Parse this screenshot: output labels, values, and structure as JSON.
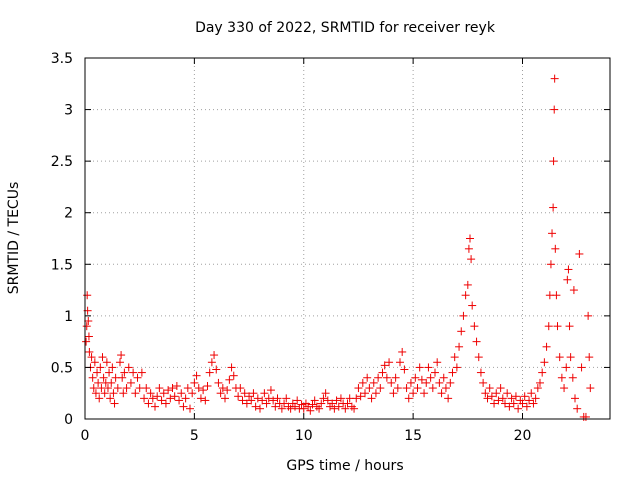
{
  "chart_data": {
    "type": "scatter",
    "title": "Day 330 of 2022, SRMTID for receiver reyk",
    "xlabel": "GPS time / hours",
    "ylabel": "SRMTID / TECUs",
    "xlim": [
      0,
      24
    ],
    "ylim": [
      0,
      3.5
    ],
    "xticks": [
      0,
      5,
      10,
      15,
      20
    ],
    "xtick_labels": [
      "0",
      "5",
      "10",
      "15",
      "20"
    ],
    "yticks": [
      0,
      0.5,
      1,
      1.5,
      2,
      2.5,
      3,
      3.5
    ],
    "ytick_labels": [
      "0",
      "0.5",
      "1",
      "1.5",
      "2",
      "2.5",
      "3",
      "3.5"
    ],
    "grid": true,
    "marker": "+",
    "series": [
      {
        "name": "reyk",
        "color": "#ee0000",
        "points": [
          [
            0.05,
            0.75
          ],
          [
            0.08,
            0.9
          ],
          [
            0.1,
            1.2
          ],
          [
            0.12,
            1.05
          ],
          [
            0.15,
            0.95
          ],
          [
            0.18,
            0.8
          ],
          [
            0.2,
            0.65
          ],
          [
            0.25,
            0.5
          ],
          [
            0.3,
            0.6
          ],
          [
            0.35,
            0.4
          ],
          [
            0.4,
            0.3
          ],
          [
            0.45,
            0.55
          ],
          [
            0.5,
            0.25
          ],
          [
            0.55,
            0.45
          ],
          [
            0.6,
            0.35
          ],
          [
            0.65,
            0.2
          ],
          [
            0.7,
            0.5
          ],
          [
            0.75,
            0.3
          ],
          [
            0.8,
            0.6
          ],
          [
            0.85,
            0.4
          ],
          [
            0.9,
            0.25
          ],
          [
            0.95,
            0.35
          ],
          [
            1.0,
            0.55
          ],
          [
            1.05,
            0.3
          ],
          [
            1.1,
            0.45
          ],
          [
            1.15,
            0.2
          ],
          [
            1.2,
            0.35
          ],
          [
            1.25,
            0.5
          ],
          [
            1.3,
            0.25
          ],
          [
            1.35,
            0.15
          ],
          [
            1.4,
            0.4
          ],
          [
            1.5,
            0.3
          ],
          [
            1.6,
            0.55
          ],
          [
            1.65,
            0.62
          ],
          [
            1.7,
            0.4
          ],
          [
            1.75,
            0.25
          ],
          [
            1.8,
            0.45
          ],
          [
            1.9,
            0.3
          ],
          [
            2.0,
            0.5
          ],
          [
            2.1,
            0.35
          ],
          [
            2.2,
            0.45
          ],
          [
            2.3,
            0.25
          ],
          [
            2.4,
            0.4
          ],
          [
            2.5,
            0.3
          ],
          [
            2.6,
            0.45
          ],
          [
            2.7,
            0.2
          ],
          [
            2.8,
            0.3
          ],
          [
            2.9,
            0.15
          ],
          [
            3.0,
            0.25
          ],
          [
            3.1,
            0.2
          ],
          [
            3.2,
            0.12
          ],
          [
            3.3,
            0.22
          ],
          [
            3.4,
            0.3
          ],
          [
            3.5,
            0.18
          ],
          [
            3.6,
            0.25
          ],
          [
            3.7,
            0.15
          ],
          [
            3.8,
            0.28
          ],
          [
            3.9,
            0.2
          ],
          [
            4.0,
            0.3
          ],
          [
            4.1,
            0.22
          ],
          [
            4.2,
            0.32
          ],
          [
            4.3,
            0.18
          ],
          [
            4.4,
            0.25
          ],
          [
            4.5,
            0.12
          ],
          [
            4.6,
            0.2
          ],
          [
            4.7,
            0.3
          ],
          [
            4.8,
            0.1
          ],
          [
            4.9,
            0.25
          ],
          [
            5.0,
            0.35
          ],
          [
            5.1,
            0.42
          ],
          [
            5.2,
            0.3
          ],
          [
            5.3,
            0.2
          ],
          [
            5.4,
            0.28
          ],
          [
            5.5,
            0.18
          ],
          [
            5.6,
            0.32
          ],
          [
            5.7,
            0.45
          ],
          [
            5.8,
            0.55
          ],
          [
            5.9,
            0.62
          ],
          [
            6.0,
            0.48
          ],
          [
            6.1,
            0.35
          ],
          [
            6.2,
            0.25
          ],
          [
            6.3,
            0.3
          ],
          [
            6.4,
            0.2
          ],
          [
            6.5,
            0.28
          ],
          [
            6.6,
            0.38
          ],
          [
            6.7,
            0.5
          ],
          [
            6.8,
            0.42
          ],
          [
            6.9,
            0.3
          ],
          [
            7.0,
            0.22
          ],
          [
            7.1,
            0.3
          ],
          [
            7.2,
            0.18
          ],
          [
            7.3,
            0.25
          ],
          [
            7.4,
            0.15
          ],
          [
            7.5,
            0.22
          ],
          [
            7.6,
            0.18
          ],
          [
            7.7,
            0.25
          ],
          [
            7.8,
            0.12
          ],
          [
            7.9,
            0.2
          ],
          [
            8.0,
            0.1
          ],
          [
            8.1,
            0.18
          ],
          [
            8.2,
            0.25
          ],
          [
            8.3,
            0.15
          ],
          [
            8.4,
            0.2
          ],
          [
            8.5,
            0.28
          ],
          [
            8.6,
            0.18
          ],
          [
            8.7,
            0.12
          ],
          [
            8.8,
            0.2
          ],
          [
            8.9,
            0.15
          ],
          [
            9.0,
            0.1
          ],
          [
            9.1,
            0.15
          ],
          [
            9.2,
            0.2
          ],
          [
            9.3,
            0.12
          ],
          [
            9.4,
            0.1
          ],
          [
            9.5,
            0.15
          ],
          [
            9.6,
            0.12
          ],
          [
            9.7,
            0.18
          ],
          [
            9.8,
            0.1
          ],
          [
            9.9,
            0.14
          ],
          [
            10.0,
            0.1
          ],
          [
            10.1,
            0.15
          ],
          [
            10.2,
            0.12
          ],
          [
            10.3,
            0.08
          ],
          [
            10.4,
            0.14
          ],
          [
            10.5,
            0.18
          ],
          [
            10.6,
            0.12
          ],
          [
            10.7,
            0.1
          ],
          [
            10.8,
            0.15
          ],
          [
            10.9,
            0.2
          ],
          [
            11.0,
            0.25
          ],
          [
            11.1,
            0.18
          ],
          [
            11.2,
            0.12
          ],
          [
            11.3,
            0.15
          ],
          [
            11.4,
            0.1
          ],
          [
            11.5,
            0.18
          ],
          [
            11.6,
            0.12
          ],
          [
            11.7,
            0.2
          ],
          [
            11.8,
            0.15
          ],
          [
            11.9,
            0.1
          ],
          [
            12.0,
            0.15
          ],
          [
            12.1,
            0.2
          ],
          [
            12.2,
            0.12
          ],
          [
            12.3,
            0.1
          ],
          [
            12.4,
            0.2
          ],
          [
            12.5,
            0.3
          ],
          [
            12.6,
            0.22
          ],
          [
            12.7,
            0.35
          ],
          [
            12.8,
            0.25
          ],
          [
            12.9,
            0.4
          ],
          [
            13.0,
            0.3
          ],
          [
            13.1,
            0.2
          ],
          [
            13.2,
            0.35
          ],
          [
            13.3,
            0.25
          ],
          [
            13.4,
            0.4
          ],
          [
            13.5,
            0.3
          ],
          [
            13.6,
            0.45
          ],
          [
            13.7,
            0.52
          ],
          [
            13.8,
            0.4
          ],
          [
            13.9,
            0.55
          ],
          [
            14.0,
            0.35
          ],
          [
            14.1,
            0.25
          ],
          [
            14.2,
            0.4
          ],
          [
            14.3,
            0.3
          ],
          [
            14.4,
            0.55
          ],
          [
            14.5,
            0.65
          ],
          [
            14.6,
            0.48
          ],
          [
            14.7,
            0.3
          ],
          [
            14.8,
            0.2
          ],
          [
            14.9,
            0.35
          ],
          [
            15.0,
            0.25
          ],
          [
            15.1,
            0.4
          ],
          [
            15.2,
            0.3
          ],
          [
            15.3,
            0.5
          ],
          [
            15.4,
            0.38
          ],
          [
            15.5,
            0.25
          ],
          [
            15.6,
            0.35
          ],
          [
            15.7,
            0.5
          ],
          [
            15.8,
            0.4
          ],
          [
            15.9,
            0.3
          ],
          [
            16.0,
            0.45
          ],
          [
            16.1,
            0.55
          ],
          [
            16.2,
            0.35
          ],
          [
            16.3,
            0.25
          ],
          [
            16.4,
            0.4
          ],
          [
            16.5,
            0.3
          ],
          [
            16.6,
            0.2
          ],
          [
            16.7,
            0.35
          ],
          [
            16.8,
            0.45
          ],
          [
            16.9,
            0.6
          ],
          [
            17.0,
            0.5
          ],
          [
            17.1,
            0.7
          ],
          [
            17.2,
            0.85
          ],
          [
            17.3,
            1.0
          ],
          [
            17.4,
            1.2
          ],
          [
            17.5,
            1.3
          ],
          [
            17.55,
            1.65
          ],
          [
            17.6,
            1.75
          ],
          [
            17.65,
            1.55
          ],
          [
            17.7,
            1.1
          ],
          [
            17.8,
            0.9
          ],
          [
            17.9,
            0.75
          ],
          [
            18.0,
            0.6
          ],
          [
            18.1,
            0.45
          ],
          [
            18.2,
            0.35
          ],
          [
            18.3,
            0.25
          ],
          [
            18.4,
            0.2
          ],
          [
            18.5,
            0.3
          ],
          [
            18.6,
            0.22
          ],
          [
            18.7,
            0.15
          ],
          [
            18.8,
            0.25
          ],
          [
            18.9,
            0.18
          ],
          [
            19.0,
            0.3
          ],
          [
            19.1,
            0.2
          ],
          [
            19.2,
            0.15
          ],
          [
            19.3,
            0.25
          ],
          [
            19.4,
            0.12
          ],
          [
            19.5,
            0.2
          ],
          [
            19.6,
            0.15
          ],
          [
            19.7,
            0.22
          ],
          [
            19.8,
            0.1
          ],
          [
            19.9,
            0.18
          ],
          [
            20.0,
            0.15
          ],
          [
            20.1,
            0.22
          ],
          [
            20.2,
            0.12
          ],
          [
            20.3,
            0.18
          ],
          [
            20.4,
            0.25
          ],
          [
            20.5,
            0.15
          ],
          [
            20.6,
            0.2
          ],
          [
            20.7,
            0.3
          ],
          [
            20.8,
            0.35
          ],
          [
            20.9,
            0.45
          ],
          [
            21.0,
            0.55
          ],
          [
            21.1,
            0.7
          ],
          [
            21.2,
            0.9
          ],
          [
            21.25,
            1.2
          ],
          [
            21.3,
            1.5
          ],
          [
            21.35,
            1.8
          ],
          [
            21.4,
            2.05
          ],
          [
            21.42,
            2.5
          ],
          [
            21.45,
            3.0
          ],
          [
            21.47,
            3.3
          ],
          [
            21.5,
            1.65
          ],
          [
            21.55,
            1.2
          ],
          [
            21.6,
            0.9
          ],
          [
            21.7,
            0.6
          ],
          [
            21.8,
            0.4
          ],
          [
            21.9,
            0.3
          ],
          [
            22.0,
            0.5
          ],
          [
            22.05,
            1.35
          ],
          [
            22.1,
            1.45
          ],
          [
            22.15,
            0.9
          ],
          [
            22.2,
            0.6
          ],
          [
            22.3,
            0.4
          ],
          [
            22.35,
            1.25
          ],
          [
            22.4,
            0.2
          ],
          [
            22.5,
            0.1
          ],
          [
            22.6,
            1.6
          ],
          [
            22.7,
            0.5
          ],
          [
            22.8,
            0.02
          ],
          [
            22.9,
            0.02
          ],
          [
            23.0,
            1.0
          ],
          [
            23.05,
            0.6
          ],
          [
            23.1,
            0.3
          ]
        ]
      }
    ]
  }
}
